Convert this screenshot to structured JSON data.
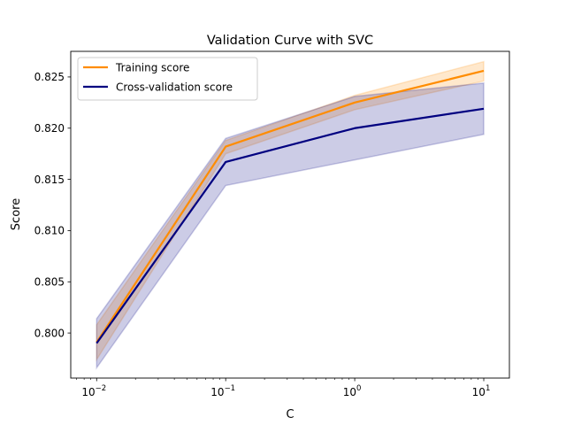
{
  "chart_data": {
    "type": "line",
    "title": "Validation Curve with SVC",
    "xlabel": "C",
    "ylabel": "Score",
    "xscale": "log",
    "x": [
      0.01,
      0.1,
      1,
      10
    ],
    "xlim": [
      0.0063,
      15.8
    ],
    "ylim": [
      0.7956,
      0.8275
    ],
    "xticks": [
      {
        "value": 0.01,
        "base": "10",
        "exp": "−2"
      },
      {
        "value": 0.1,
        "base": "10",
        "exp": "−1"
      },
      {
        "value": 1,
        "base": "10",
        "exp": "0"
      },
      {
        "value": 10,
        "base": "10",
        "exp": "1"
      }
    ],
    "yticks": [
      {
        "value": 0.8,
        "label": "0.800"
      },
      {
        "value": 0.805,
        "label": "0.805"
      },
      {
        "value": 0.81,
        "label": "0.810"
      },
      {
        "value": 0.815,
        "label": "0.815"
      },
      {
        "value": 0.82,
        "label": "0.820"
      },
      {
        "value": 0.825,
        "label": "0.825"
      }
    ],
    "legend_position": "top-left",
    "grid": false,
    "series": [
      {
        "name": "Training score",
        "color": "#ff8c00",
        "values": [
          0.7991,
          0.8182,
          0.8225,
          0.8256
        ],
        "band_low": [
          0.7974,
          0.8175,
          0.8218,
          0.8246
        ],
        "band_high": [
          0.8008,
          0.8188,
          0.8232,
          0.8265
        ]
      },
      {
        "name": "Cross-validation score",
        "color": "#000080",
        "values": [
          0.799,
          0.8167,
          0.82,
          0.8219
        ],
        "band_low": [
          0.7966,
          0.8144,
          0.8169,
          0.8194
        ],
        "band_high": [
          0.8014,
          0.819,
          0.8231,
          0.8244
        ]
      }
    ]
  }
}
